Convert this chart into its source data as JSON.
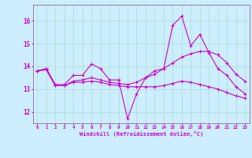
{
  "background_color": "#cceeff",
  "grid_color": "#aaddcc",
  "line_color": "#cc00cc",
  "spine_color": "#996699",
  "xlabel": "Windchill (Refroidissement éolien,°C)",
  "xlim": [
    -0.5,
    23.5
  ],
  "ylim": [
    11.5,
    16.7
  ],
  "yticks": [
    12,
    13,
    14,
    15,
    16
  ],
  "xticks": [
    0,
    1,
    2,
    3,
    4,
    5,
    6,
    7,
    8,
    9,
    10,
    11,
    12,
    13,
    14,
    15,
    16,
    17,
    18,
    19,
    20,
    21,
    22,
    23
  ],
  "series1_x": [
    0,
    1,
    2,
    3,
    4,
    5,
    6,
    7,
    8,
    9,
    10,
    11,
    12,
    13,
    14,
    15,
    16,
    17,
    18,
    19,
    20,
    21,
    22,
    23
  ],
  "series1_y": [
    13.8,
    13.9,
    13.2,
    13.2,
    13.6,
    13.6,
    14.1,
    13.9,
    13.4,
    13.4,
    11.7,
    12.8,
    13.5,
    13.8,
    13.9,
    15.8,
    16.2,
    14.9,
    15.4,
    14.6,
    13.9,
    13.6,
    13.1,
    12.8
  ],
  "series2_x": [
    0,
    1,
    2,
    3,
    4,
    5,
    6,
    7,
    8,
    9,
    10,
    11,
    12,
    13,
    14,
    15,
    16,
    17,
    18,
    19,
    20,
    21,
    22,
    23
  ],
  "series2_y": [
    13.8,
    13.85,
    13.15,
    13.15,
    13.35,
    13.4,
    13.5,
    13.4,
    13.3,
    13.25,
    13.2,
    13.3,
    13.5,
    13.65,
    13.9,
    14.15,
    14.4,
    14.55,
    14.65,
    14.65,
    14.5,
    14.15,
    13.65,
    13.35
  ],
  "series3_x": [
    0,
    1,
    2,
    3,
    4,
    5,
    6,
    7,
    8,
    9,
    10,
    11,
    12,
    13,
    14,
    15,
    16,
    17,
    18,
    19,
    20,
    21,
    22,
    23
  ],
  "series3_y": [
    13.8,
    13.85,
    13.15,
    13.15,
    13.3,
    13.3,
    13.35,
    13.3,
    13.2,
    13.15,
    13.1,
    13.1,
    13.1,
    13.1,
    13.15,
    13.25,
    13.35,
    13.3,
    13.2,
    13.1,
    13.0,
    12.85,
    12.7,
    12.6
  ]
}
